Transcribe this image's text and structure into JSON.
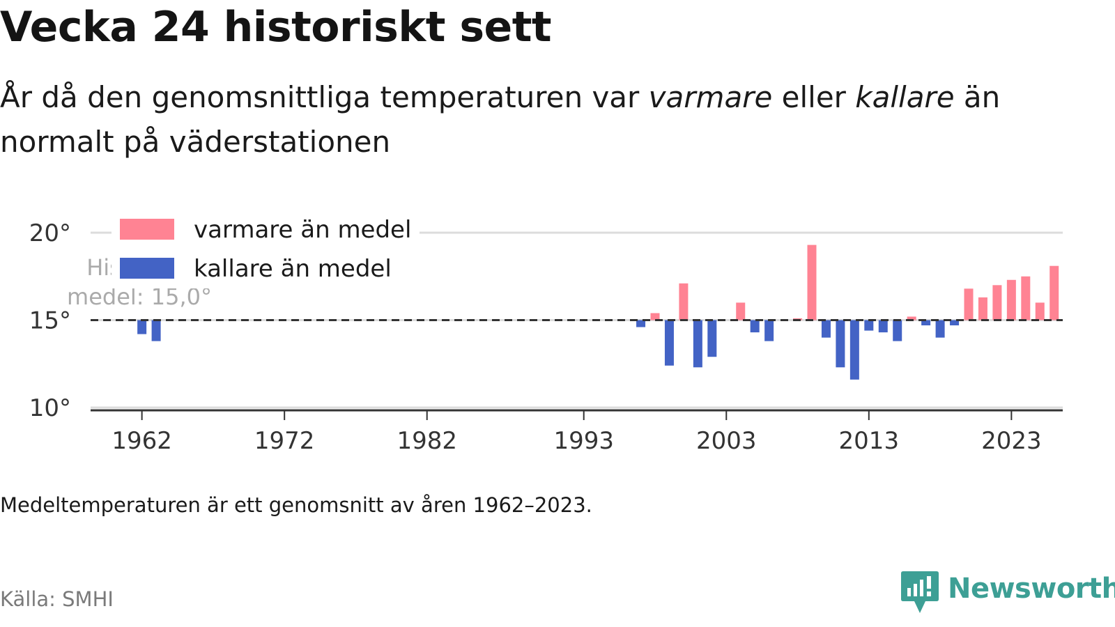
{
  "title": "Vecka 24 historiskt sett",
  "subtitle": {
    "part1": "År då den genomsnittliga temperaturen var ",
    "warm_word": "varmare",
    "part2": " eller ",
    "cold_word": "kallare",
    "part3": " än normalt på väderstationen"
  },
  "note": "Medeltemperaturen är ett genomsnitt av åren 1962–2023.",
  "source": "Källa: SMHI",
  "brand": {
    "name": "Newsworthy",
    "icon": "newsworthy-logo-icon",
    "color": "#3d9f95"
  },
  "colors": {
    "warm": "#ff8393",
    "cold": "#4363c5",
    "grid": "#dcdcdc",
    "axis": "#333333",
    "mean_line": "#333333"
  },
  "chart_data": {
    "type": "bar",
    "title": "Vecka 24 historiskt sett",
    "ylabel": "",
    "xlabel": "",
    "ylim": [
      10,
      20
    ],
    "xlim": [
      1958.4,
      2026.6
    ],
    "y_ticks": [
      10,
      15,
      20
    ],
    "y_tick_labels": [
      "10°",
      "15°",
      "20°"
    ],
    "x_ticks": [
      1962,
      1972,
      1982,
      1993,
      2003,
      2013,
      2023
    ],
    "x_tick_labels": [
      "1962",
      "1972",
      "1982",
      "1993",
      "2003",
      "2013",
      "2023"
    ],
    "baseline": 15.0,
    "baseline_annotation": "Historiskt medel: 15,0°",
    "grid": true,
    "legend_position": "top-left",
    "legend": [
      {
        "label": "varmare än medel",
        "color": "#ff8393"
      },
      {
        "label": "kallare än medel",
        "color": "#4363c5"
      }
    ],
    "series": [
      {
        "name": "varmare än medel",
        "color": "#ff8393",
        "points": [
          {
            "x": 1998,
            "y": 15.4
          },
          {
            "x": 2000,
            "y": 17.1
          },
          {
            "x": 2004,
            "y": 16.0
          },
          {
            "x": 2008,
            "y": 15.1
          },
          {
            "x": 2009,
            "y": 19.3
          },
          {
            "x": 2016,
            "y": 15.2
          },
          {
            "x": 2020,
            "y": 16.8
          },
          {
            "x": 2021,
            "y": 16.3
          },
          {
            "x": 2022,
            "y": 17.0
          },
          {
            "x": 2023,
            "y": 17.3
          },
          {
            "x": 2024,
            "y": 17.5
          },
          {
            "x": 2025,
            "y": 16.0
          },
          {
            "x": 2026,
            "y": 18.1
          }
        ]
      },
      {
        "name": "kallare än medel",
        "color": "#4363c5",
        "points": [
          {
            "x": 1962,
            "y": 14.2
          },
          {
            "x": 1963,
            "y": 13.8
          },
          {
            "x": 1997,
            "y": 14.6
          },
          {
            "x": 1999,
            "y": 12.4
          },
          {
            "x": 2001,
            "y": 12.3
          },
          {
            "x": 2002,
            "y": 12.9
          },
          {
            "x": 2005,
            "y": 14.3
          },
          {
            "x": 2006,
            "y": 13.8
          },
          {
            "x": 2010,
            "y": 14.0
          },
          {
            "x": 2011,
            "y": 12.3
          },
          {
            "x": 2012,
            "y": 11.6
          },
          {
            "x": 2013,
            "y": 14.4
          },
          {
            "x": 2014,
            "y": 14.3
          },
          {
            "x": 2015,
            "y": 13.8
          },
          {
            "x": 2017,
            "y": 14.7
          },
          {
            "x": 2018,
            "y": 14.0
          },
          {
            "x": 2019,
            "y": 14.7
          }
        ]
      }
    ]
  }
}
